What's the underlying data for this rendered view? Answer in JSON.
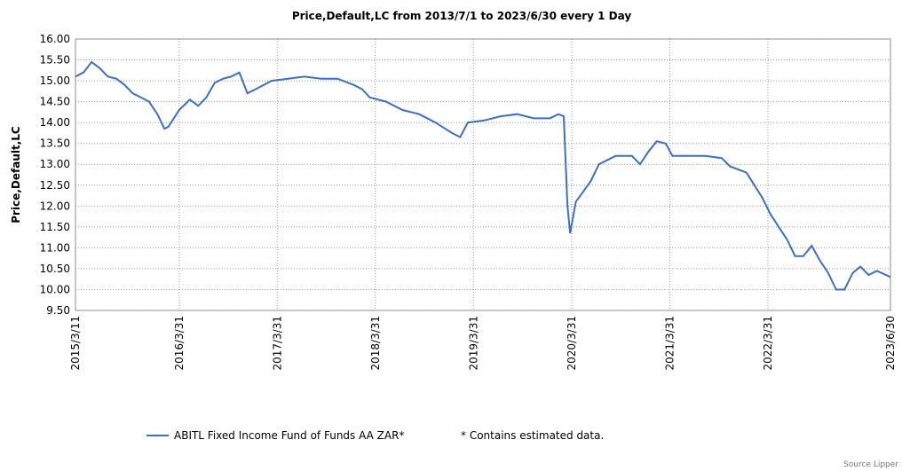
{
  "chart_data": {
    "type": "line",
    "title": "Price,Default,LC from 2013/7/1 to 2023/6/30 every 1 Day",
    "y_label": "Price,Default,LC",
    "x": [
      "2015/3/11",
      "2015/4/10",
      "2015/5/10",
      "2015/6/10",
      "2015/7/10",
      "2015/8/10",
      "2015/9/10",
      "2015/10/10",
      "2015/11/10",
      "2015/12/10",
      "2016/1/10",
      "2016/2/5",
      "2016/2/20",
      "2016/3/31",
      "2016/5/10",
      "2016/6/10",
      "2016/7/10",
      "2016/8/10",
      "2016/9/10",
      "2016/10/10",
      "2016/11/10",
      "2016/12/10",
      "2017/1/10",
      "2017/3/10",
      "2017/5/10",
      "2017/7/10",
      "2017/9/10",
      "2017/11/10",
      "2018/1/10",
      "2018/2/10",
      "2018/3/10",
      "2018/5/10",
      "2018/7/10",
      "2018/9/10",
      "2018/11/10",
      "2019/1/10",
      "2019/2/10",
      "2019/3/10",
      "2019/5/10",
      "2019/7/10",
      "2019/9/10",
      "2019/11/10",
      "2020/1/10",
      "2020/2/10",
      "2020/3/1",
      "2020/3/15",
      "2020/3/25",
      "2020/4/15",
      "2020/6/10",
      "2020/7/10",
      "2020/9/10",
      "2020/11/10",
      "2020/12/10",
      "2021/1/10",
      "2021/2/10",
      "2021/3/15",
      "2021/4/10",
      "2021/6/10",
      "2021/8/10",
      "2021/10/10",
      "2021/11/10",
      "2022/1/10",
      "2022/3/10",
      "2022/4/10",
      "2022/5/10",
      "2022/6/10",
      "2022/7/10",
      "2022/8/10",
      "2022/9/10",
      "2022/10/10",
      "2022/11/10",
      "2022/12/10",
      "2023/1/10",
      "2023/2/10",
      "2023/3/10",
      "2023/4/10",
      "2023/5/10",
      "2023/6/30"
    ],
    "series": [
      {
        "name": "ABITL Fixed Income Fund of Funds AA ZAR*",
        "color": "#3a6fc9",
        "values": [
          15.1,
          15.2,
          15.45,
          15.3,
          15.1,
          15.05,
          14.9,
          14.7,
          14.6,
          14.5,
          14.2,
          13.85,
          13.9,
          14.3,
          14.55,
          14.4,
          14.6,
          14.95,
          15.05,
          15.1,
          15.2,
          14.7,
          14.8,
          15.0,
          15.05,
          15.1,
          15.05,
          15.05,
          14.9,
          14.8,
          14.6,
          14.5,
          14.3,
          14.2,
          14.0,
          13.75,
          13.65,
          14.0,
          14.05,
          14.15,
          14.2,
          14.1,
          14.1,
          14.2,
          14.15,
          12.0,
          11.35,
          12.1,
          12.6,
          13.0,
          13.2,
          13.2,
          13.0,
          13.3,
          13.55,
          13.5,
          13.2,
          13.2,
          13.2,
          13.15,
          12.95,
          12.8,
          12.2,
          11.8,
          11.5,
          11.2,
          10.8,
          10.8,
          11.05,
          10.7,
          10.4,
          10.0,
          10.0,
          10.4,
          10.55,
          10.35,
          10.45,
          10.3
        ]
      }
    ],
    "xlim": [
      "2015/3/11",
      "2023/6/30"
    ],
    "xticks": [
      "2015/3/11",
      "2016/3/31",
      "2017/3/31",
      "2018/3/31",
      "2019/3/31",
      "2020/3/31",
      "2021/3/31",
      "2022/3/31",
      "2023/6/30"
    ],
    "ylim": [
      9.5,
      16
    ],
    "yticks": [
      {
        "value": 9.5,
        "label": "9.50"
      },
      {
        "value": 10,
        "label": "10.00"
      },
      {
        "value": 10.5,
        "label": "10.50"
      },
      {
        "value": 11,
        "label": "11.00"
      },
      {
        "value": 11.5,
        "label": "11.50"
      },
      {
        "value": 12,
        "label": "12.00"
      },
      {
        "value": 12.5,
        "label": "12.50"
      },
      {
        "value": 13,
        "label": "13.00"
      },
      {
        "value": 13.5,
        "label": "13.50"
      },
      {
        "value": 14,
        "label": "14.00"
      },
      {
        "value": 14.5,
        "label": "14.50"
      },
      {
        "value": 15,
        "label": "15.00"
      },
      {
        "value": 15.5,
        "label": "15.50"
      },
      {
        "value": 16,
        "label": "16.00"
      }
    ],
    "grid": true,
    "note": "* Contains estimated data.",
    "source": "Source Lipper"
  }
}
